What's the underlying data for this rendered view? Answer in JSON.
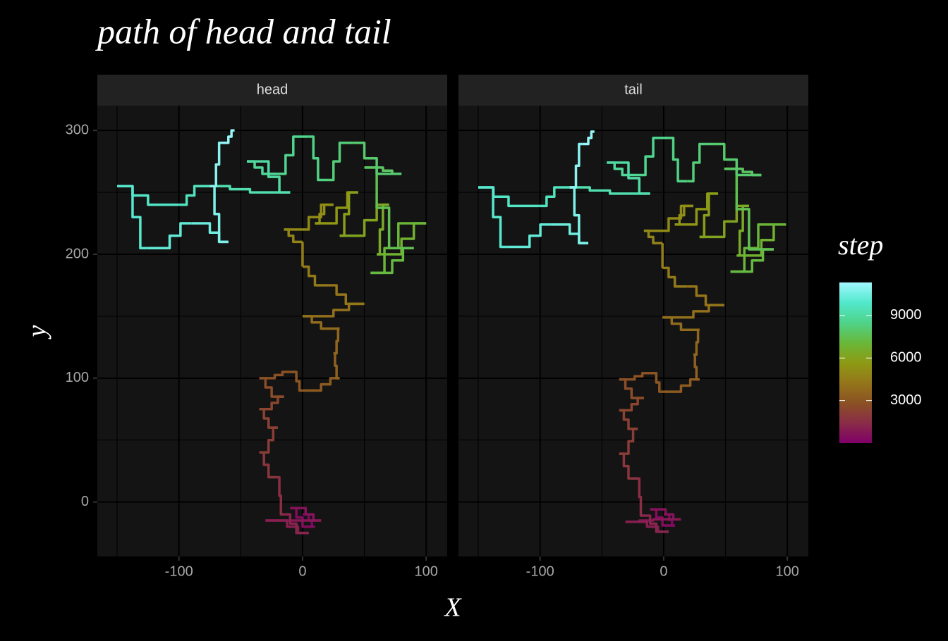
{
  "chart_data": {
    "type": "line",
    "title": "path of head and tail",
    "x_label": "X",
    "y_label": "y",
    "xlim": [
      -166,
      117
    ],
    "ylim": [
      -44,
      320
    ],
    "xticks": [
      -100,
      0,
      100
    ],
    "yticks": [
      0,
      100,
      200,
      300
    ],
    "x_minor": [
      -150,
      -50,
      50
    ],
    "y_minor": [
      50,
      150,
      250
    ],
    "colorbar": {
      "title": "step",
      "lim": [
        1,
        11330
      ],
      "ticks": [
        3000,
        6000,
        9000
      ],
      "palette": [
        "#800068",
        "#8a2c48",
        "#8b5224",
        "#94761a",
        "#8e9a14",
        "#68b83a",
        "#4fd38a",
        "#52e8cc",
        "#a2f8ff"
      ]
    },
    "facets": [
      {
        "name": "head",
        "x": [
          0,
          10,
          -10,
          15,
          -30,
          5,
          -15,
          -20,
          -35,
          -20,
          -35,
          -15,
          -35,
          -10,
          0,
          30,
          25,
          30,
          0,
          50,
          20,
          0,
          0,
          -15,
          25,
          10,
          45,
          30,
          70,
          60,
          100,
          55,
          90,
          50,
          80,
          40,
          20,
          5,
          -20,
          -45,
          -10,
          -75,
          -100,
          -150,
          -125,
          -90,
          -60,
          -75,
          -65,
          -55
        ],
        "y": [
          -10,
          -20,
          -5,
          -15,
          -15,
          -25,
          -10,
          20,
          40,
          60,
          75,
          85,
          100,
          105,
          90,
          100,
          120,
          140,
          150,
          160,
          175,
          190,
          210,
          220,
          240,
          225,
          250,
          215,
          240,
          200,
          225,
          185,
          205,
          270,
          265,
          290,
          260,
          295,
          265,
          275,
          250,
          255,
          240,
          255,
          205,
          225,
          210,
          255,
          290,
          300
        ],
        "step": [
          1,
          200,
          400,
          600,
          800,
          1000,
          1200,
          1500,
          1800,
          2000,
          2200,
          2400,
          2600,
          2800,
          3000,
          3200,
          3400,
          3600,
          3800,
          4000,
          4200,
          4400,
          4600,
          4800,
          5000,
          5200,
          5500,
          5800,
          6100,
          6400,
          6700,
          7000,
          7200,
          7500,
          7800,
          8000,
          8200,
          8400,
          8600,
          8800,
          9000,
          9300,
          9600,
          9800,
          10000,
          10200,
          10400,
          10700,
          10900,
          11100
        ]
      },
      {
        "name": "tail",
        "x": [
          0,
          9,
          -11,
          14,
          -31,
          4,
          -16,
          -21,
          -36,
          -21,
          -36,
          -16,
          -36,
          -11,
          -1,
          29,
          24,
          29,
          -1,
          49,
          19,
          -1,
          -1,
          -16,
          24,
          9,
          44,
          29,
          69,
          59,
          99,
          54,
          89,
          49,
          79,
          39,
          19,
          4,
          -21,
          -46,
          -11,
          -76,
          -101,
          -150,
          -126,
          -91,
          -61,
          -76,
          -66,
          -56
        ],
        "y": [
          -10,
          -19,
          -6,
          -14,
          -16,
          -24,
          -11,
          19,
          39,
          59,
          74,
          84,
          99,
          104,
          89,
          99,
          119,
          139,
          149,
          159,
          174,
          189,
          209,
          219,
          239,
          224,
          249,
          214,
          239,
          199,
          224,
          186,
          204,
          269,
          264,
          289,
          259,
          294,
          264,
          274,
          249,
          254,
          239,
          254,
          206,
          224,
          209,
          254,
          289,
          299
        ],
        "step": [
          1,
          200,
          400,
          600,
          800,
          1000,
          1200,
          1500,
          1800,
          2000,
          2200,
          2400,
          2600,
          2800,
          3000,
          3200,
          3400,
          3600,
          3800,
          4000,
          4200,
          4400,
          4600,
          4800,
          5000,
          5200,
          5500,
          5800,
          6100,
          6400,
          6700,
          7000,
          7200,
          7500,
          7800,
          8000,
          8200,
          8400,
          8600,
          8800,
          9000,
          9300,
          9600,
          9800,
          10000,
          10200,
          10400,
          10700,
          10900,
          11100
        ]
      }
    ]
  }
}
